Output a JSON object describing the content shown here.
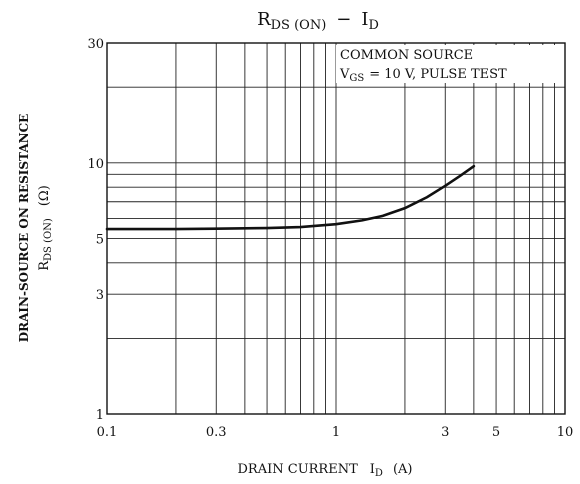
{
  "chart_data": {
    "type": "line",
    "title": {
      "main": "R",
      "main_sub": "DS (ON)",
      "sep": "−",
      "rhs": "I",
      "rhs_sub": "D"
    },
    "xlabel": {
      "text": "DRAIN CURRENT",
      "symbol": "I",
      "symbol_sub": "D",
      "unit": "(A)"
    },
    "ylabel": {
      "line1": "DRAIN-SOURCE ON RESISTANCE",
      "line2_symbol": "R",
      "line2_sub": "DS (ON)",
      "line2_unit": "(Ω)"
    },
    "x_scale": "log",
    "y_scale": "log",
    "xlim": [
      0.1,
      10
    ],
    "ylim": [
      1,
      30
    ],
    "x_ticks": [
      0.1,
      0.3,
      1,
      3,
      5,
      10
    ],
    "x_tick_labels": [
      "0.1",
      "0.3",
      "1",
      "3",
      "5",
      "10"
    ],
    "y_ticks": [
      1,
      3,
      5,
      10,
      30
    ],
    "y_tick_labels": [
      "1",
      "3",
      "5",
      "10",
      "30"
    ],
    "annotation": {
      "line1": "COMMON SOURCE",
      "line2_symbol": "V",
      "line2_sub": "GS",
      "line2_text": "= 10 V, PULSE TEST"
    },
    "grid": true,
    "series": [
      {
        "x": [
          0.1,
          0.2,
          0.3,
          0.5,
          0.7,
          1.0,
          1.3,
          1.6,
          2.0,
          2.5,
          3.0,
          3.5,
          4.0
        ],
        "y": [
          5.45,
          5.45,
          5.47,
          5.5,
          5.55,
          5.7,
          5.9,
          6.15,
          6.6,
          7.3,
          8.1,
          8.9,
          9.7
        ]
      }
    ]
  }
}
